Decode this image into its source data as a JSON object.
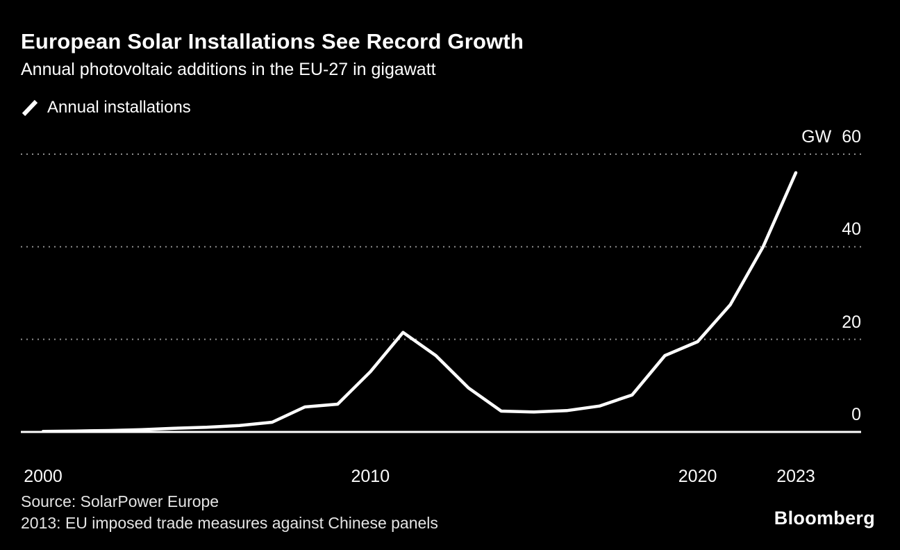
{
  "header": {
    "title": "European Solar Installations See Record Growth",
    "subtitle": "Annual photovoltaic additions in the EU-27 in gigawatt"
  },
  "legend": {
    "items": [
      {
        "icon": "line-swatch-icon",
        "label": "Annual installations"
      }
    ]
  },
  "footer": {
    "source": "Source: SolarPower Europe",
    "note": "2013: EU imposed trade measures against Chinese panels",
    "brand": "Bloomberg"
  },
  "colors": {
    "background": "#000000",
    "line": "#ffffff",
    "gridline": "#8f8f8f",
    "text": "#ffffff"
  },
  "chart_data": {
    "type": "line",
    "title": "European Solar Installations See Record Growth",
    "subtitle": "Annual photovoltaic additions in the EU-27 in gigawatt",
    "unit": "GW",
    "ylim": [
      0,
      60
    ],
    "gridlines": [
      20,
      40,
      60
    ],
    "grid_style": "dotted",
    "legend_position": "top-left",
    "series": [
      {
        "name": "Annual installations",
        "x": [
          2000,
          2001,
          2002,
          2003,
          2004,
          2005,
          2006,
          2007,
          2008,
          2009,
          2010,
          2011,
          2012,
          2013,
          2014,
          2015,
          2016,
          2017,
          2018,
          2019,
          2020,
          2021,
          2022,
          2023
        ],
        "values": [
          0.1,
          0.2,
          0.3,
          0.5,
          0.8,
          1.0,
          1.4,
          2.1,
          5.4,
          6.0,
          13.0,
          21.5,
          16.5,
          9.5,
          4.5,
          4.3,
          4.6,
          5.6,
          8.0,
          16.5,
          19.5,
          27.5,
          40.0,
          56.0
        ]
      }
    ],
    "y_ticks": [
      {
        "label": "60",
        "value": 60,
        "show_unit": true
      },
      {
        "label": "40",
        "value": 40
      },
      {
        "label": "20",
        "value": 20
      },
      {
        "label": "0",
        "value": 0
      }
    ],
    "x_ticks": [
      {
        "label": "2000",
        "value": 2000
      },
      {
        "label": "2010",
        "value": 2010
      },
      {
        "label": "2020",
        "value": 2020
      },
      {
        "label": "2023",
        "value": 2023
      }
    ]
  }
}
